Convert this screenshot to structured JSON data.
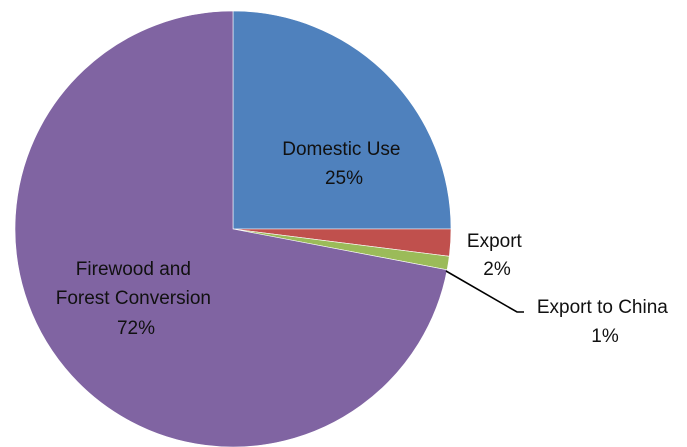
{
  "chart_data": {
    "type": "pie",
    "slices": [
      {
        "label": "Domestic Use",
        "value": 25,
        "value_label": "25%",
        "color": "#4f81bd"
      },
      {
        "label": "Export",
        "value": 2,
        "value_label": "2%",
        "color": "#c0504d"
      },
      {
        "label": "Export to China",
        "value": 1,
        "value_label": "1%",
        "color": "#9bbb59"
      },
      {
        "label": "Firewood and Forest Conversion",
        "value": 72,
        "value_label": "72%",
        "color": "#8064a2"
      }
    ],
    "start_angle_deg": 0,
    "direction": "clockwise",
    "legend": "none"
  }
}
